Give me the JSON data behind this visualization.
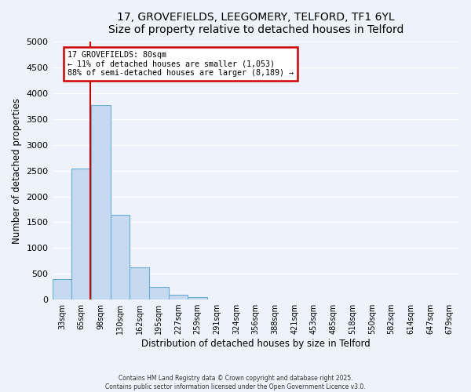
{
  "title": "17, GROVEFIELDS, LEEGOMERY, TELFORD, TF1 6YL",
  "subtitle": "Size of property relative to detached houses in Telford",
  "xlabel": "Distribution of detached houses by size in Telford",
  "ylabel": "Number of detached properties",
  "bar_color": "#c5d9f0",
  "bar_edge_color": "#6aaed6",
  "bin_labels": [
    "33sqm",
    "65sqm",
    "98sqm",
    "130sqm",
    "162sqm",
    "195sqm",
    "227sqm",
    "259sqm",
    "291sqm",
    "324sqm",
    "356sqm",
    "388sqm",
    "421sqm",
    "453sqm",
    "485sqm",
    "518sqm",
    "550sqm",
    "582sqm",
    "614sqm",
    "647sqm",
    "679sqm"
  ],
  "bar_values": [
    390,
    2540,
    3780,
    1650,
    620,
    250,
    100,
    50,
    0,
    0,
    0,
    0,
    0,
    0,
    0,
    0,
    0,
    0,
    0,
    0,
    0
  ],
  "ylim": [
    0,
    5000
  ],
  "yticks": [
    0,
    500,
    1000,
    1500,
    2000,
    2500,
    3000,
    3500,
    4000,
    4500,
    5000
  ],
  "property_line_x": 1.47,
  "annotation_title": "17 GROVEFIELDS: 80sqm",
  "annotation_line1": "← 11% of detached houses are smaller (1,053)",
  "annotation_line2": "88% of semi-detached houses are larger (8,189) →",
  "annotation_box_color": "#ffffff",
  "annotation_border_color": "#cc0000",
  "vline_color": "#cc0000",
  "footer1": "Contains HM Land Registry data © Crown copyright and database right 2025.",
  "footer2": "Contains public sector information licensed under the Open Government Licence v3.0.",
  "bg_color": "#eef2fb",
  "grid_color": "#ffffff"
}
